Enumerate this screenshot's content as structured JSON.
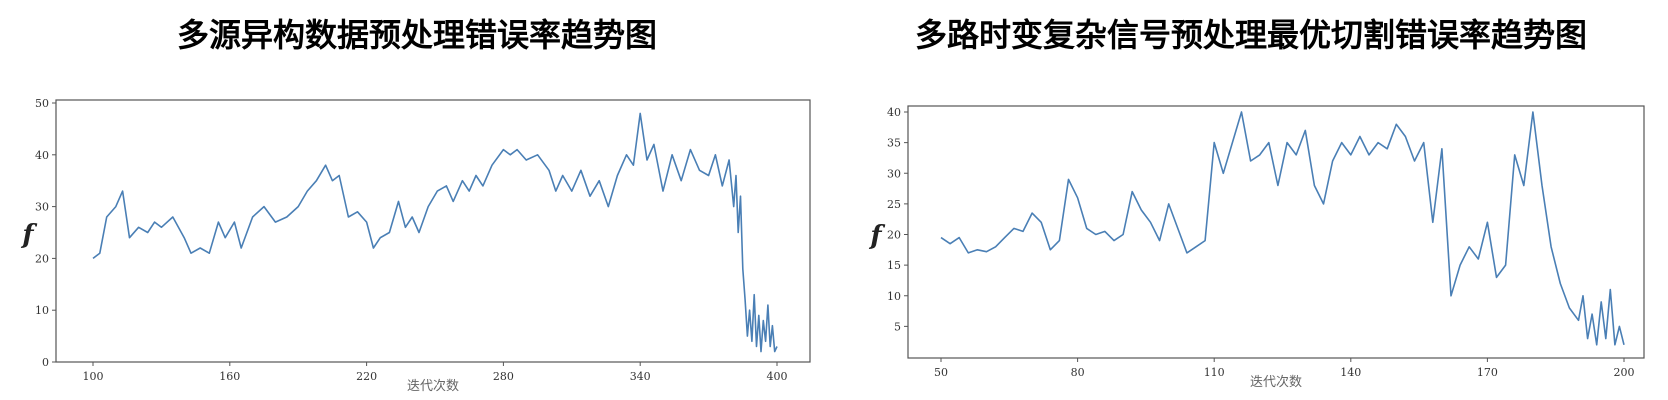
{
  "chart_data": [
    {
      "type": "line",
      "title": "多源异构数据预处理错误率趋势图",
      "xlabel": "迭代次数",
      "ylabel": "f",
      "xlim": [
        100,
        400
      ],
      "ylim": [
        0,
        50
      ],
      "xticks": [
        100,
        160,
        220,
        280,
        340,
        400
      ],
      "yticks": [
        0,
        10,
        20,
        30,
        40,
        50
      ],
      "grid": false,
      "line_color": "#4a7fb5",
      "series": [
        {
          "x": [
            100,
            103,
            106,
            110,
            113,
            116,
            120,
            124,
            127,
            130,
            135,
            140,
            143,
            147,
            151,
            155,
            158,
            162,
            165,
            170,
            175,
            180,
            185,
            190,
            194,
            198,
            202,
            205,
            208,
            212,
            216,
            220,
            223,
            226,
            230,
            234,
            237,
            240,
            243,
            247,
            251,
            255,
            258,
            262,
            265,
            268,
            271,
            275,
            280,
            283,
            286,
            290,
            295,
            300,
            303,
            306,
            310,
            314,
            318,
            322,
            326,
            330,
            334,
            337,
            340,
            343,
            346,
            350,
            354,
            358,
            362,
            366,
            370,
            373,
            376,
            379,
            381,
            382,
            383,
            384,
            385,
            386,
            387,
            388,
            389,
            390,
            391,
            392,
            393,
            394,
            395,
            396,
            397,
            398,
            399,
            400
          ],
          "y": [
            20,
            21,
            28,
            30,
            33,
            24,
            26,
            25,
            27,
            26,
            28,
            24,
            21,
            22,
            21,
            27,
            24,
            27,
            22,
            28,
            30,
            27,
            28,
            30,
            33,
            35,
            38,
            35,
            36,
            28,
            29,
            27,
            22,
            24,
            25,
            31,
            26,
            28,
            25,
            30,
            33,
            34,
            31,
            35,
            33,
            36,
            34,
            38,
            41,
            40,
            41,
            39,
            40,
            37,
            33,
            36,
            33,
            37,
            32,
            35,
            30,
            36,
            40,
            38,
            48,
            39,
            42,
            33,
            40,
            35,
            41,
            37,
            36,
            40,
            34,
            39,
            30,
            36,
            25,
            32,
            18,
            12,
            5,
            10,
            4,
            13,
            3,
            9,
            2,
            8,
            4,
            11,
            3,
            7,
            2,
            3
          ]
        }
      ]
    },
    {
      "type": "line",
      "title": "多路时变复杂信号预处理最优切割错误率趋势图",
      "xlabel": "迭代次数",
      "ylabel": "f",
      "xlim": [
        50,
        200
      ],
      "ylim": [
        0,
        40
      ],
      "xticks": [
        50,
        80,
        110,
        140,
        170,
        200
      ],
      "yticks": [
        5,
        10,
        15,
        20,
        25,
        30,
        35,
        40
      ],
      "grid": false,
      "line_color": "#4a7fb5",
      "series": [
        {
          "x": [
            50,
            52,
            54,
            56,
            58,
            60,
            62,
            64,
            66,
            68,
            70,
            72,
            74,
            76,
            78,
            80,
            82,
            84,
            86,
            88,
            90,
            92,
            94,
            96,
            98,
            100,
            102,
            104,
            106,
            108,
            110,
            112,
            114,
            116,
            118,
            120,
            122,
            124,
            126,
            128,
            130,
            132,
            134,
            136,
            138,
            140,
            142,
            144,
            146,
            148,
            150,
            152,
            154,
            156,
            158,
            160,
            162,
            164,
            166,
            168,
            170,
            172,
            174,
            176,
            178,
            180,
            182,
            184,
            186,
            188,
            190,
            191,
            192,
            193,
            194,
            195,
            196,
            197,
            198,
            199,
            200
          ],
          "y": [
            19.5,
            18.5,
            19.5,
            17,
            17.5,
            17.2,
            18,
            19.5,
            21,
            20.5,
            23.5,
            22,
            17.5,
            19,
            29,
            26,
            21,
            20,
            20.5,
            19,
            20,
            27,
            24,
            22,
            19,
            25,
            21,
            17,
            18,
            19,
            35,
            30,
            35,
            40,
            32,
            33,
            35,
            28,
            35,
            33,
            37,
            28,
            25,
            32,
            35,
            33,
            36,
            33,
            35,
            34,
            38,
            36,
            32,
            35,
            22,
            34,
            10,
            15,
            18,
            16,
            22,
            13,
            15,
            33,
            28,
            40,
            28,
            18,
            12,
            8,
            6,
            10,
            3,
            7,
            2,
            9,
            3,
            11,
            2,
            5,
            2
          ]
        }
      ]
    }
  ]
}
